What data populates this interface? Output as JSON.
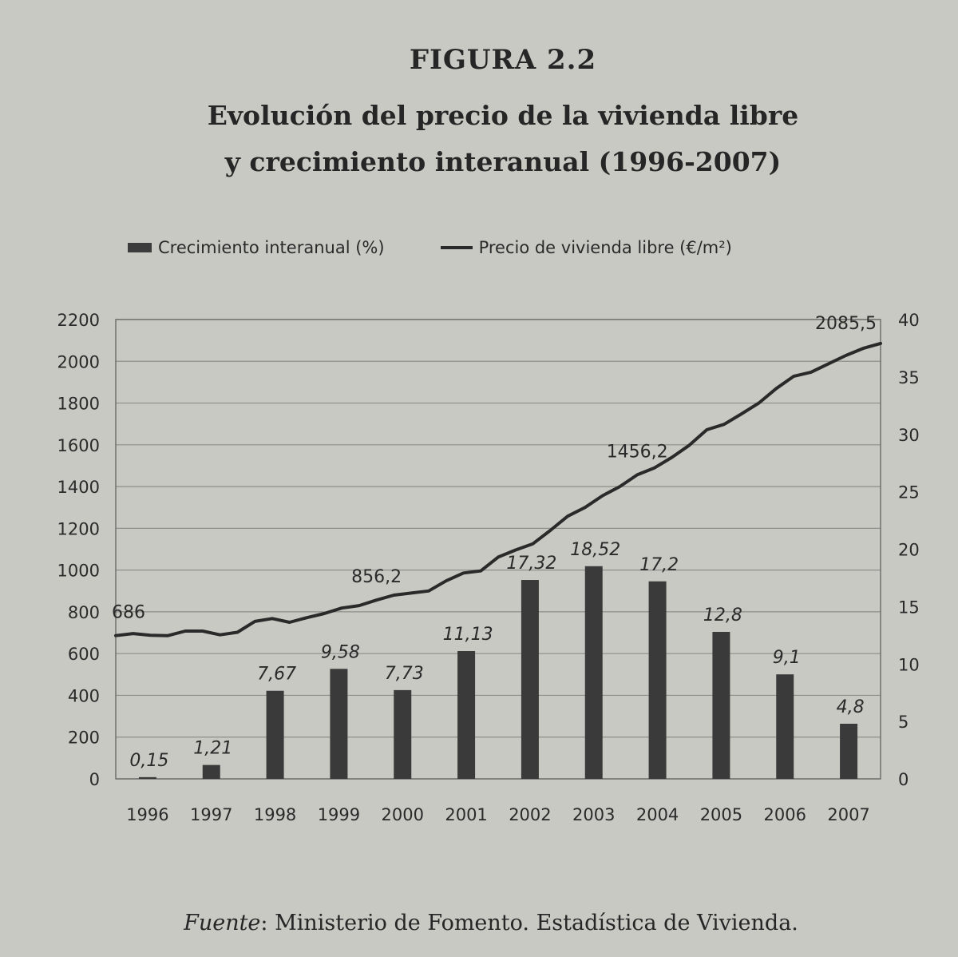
{
  "figure_label": "FIGURA 2.2",
  "title_line1": "Evolución del precio de la vivienda libre",
  "title_line2": "y crecimiento interanual (1996-2007)",
  "source_label": "Fuente",
  "source_text": ": Ministerio de Fomento. Estadística de Vivienda.",
  "chart_data": {
    "type": "bar",
    "categories": [
      "1996",
      "1997",
      "1998",
      "1999",
      "2000",
      "2001",
      "2002",
      "2003",
      "2004",
      "2005",
      "2006",
      "2007"
    ],
    "series": [
      {
        "name": "Crecimiento interanual (%)",
        "type": "bar",
        "axis": "right",
        "values": [
          0.15,
          1.21,
          7.67,
          9.58,
          7.73,
          11.13,
          17.32,
          18.52,
          17.2,
          12.8,
          9.1,
          4.8
        ],
        "labels": [
          "0,15",
          "1,21",
          "7,67",
          "9,58",
          "7,73",
          "11,13",
          "17,32",
          "18,52",
          "17,2",
          "12,8",
          "9,1",
          "4,8"
        ]
      },
      {
        "name": "Precio de vivienda libre (€/m²)",
        "type": "line",
        "axis": "left",
        "x": [
          1996.0,
          1996.25,
          1996.5,
          1996.75,
          1997.0,
          1997.25,
          1997.5,
          1997.75,
          1998.0,
          1998.25,
          1998.5,
          1998.75,
          1999.0,
          1999.25,
          1999.5,
          1999.75,
          2000.0,
          2000.25,
          2000.5,
          2000.75,
          2001.0,
          2001.25,
          2001.5,
          2001.75,
          2002.0,
          2002.25,
          2002.5,
          2002.75,
          2003.0,
          2003.25,
          2003.5,
          2003.75,
          2004.0,
          2004.25,
          2004.5,
          2004.75,
          2005.0,
          2005.25,
          2005.5,
          2005.75,
          2006.0,
          2006.25,
          2006.5,
          2006.75,
          2007.0
        ],
        "y": [
          686,
          696,
          688,
          686,
          708,
          708,
          690,
          702,
          754,
          768,
          750,
          772,
          792,
          818,
          830,
          856.2,
          880,
          890,
          900,
          948,
          986,
          996,
          1062,
          1096,
          1126,
          1190,
          1258,
          1300,
          1356,
          1400,
          1456.2,
          1490,
          1540,
          1598,
          1672,
          1698,
          1748,
          1800,
          1870,
          1928,
          1948,
          1988,
          2028,
          2062,
          2085.5
        ]
      }
    ],
    "point_labels": [
      {
        "x": 1996.0,
        "y": 686,
        "text": "686"
      },
      {
        "x": 1999.75,
        "y": 856.2,
        "text": "856,2"
      },
      {
        "x": 2003.5,
        "y": 1456.2,
        "text": "1456,2"
      },
      {
        "x": 2007.0,
        "y": 2085.5,
        "text": "2085,5"
      }
    ],
    "y_left": {
      "min": 0,
      "max": 2200,
      "ticks": [
        0,
        200,
        400,
        600,
        800,
        1000,
        1200,
        1400,
        1600,
        1800,
        2000,
        2200
      ]
    },
    "y_right": {
      "min": 0,
      "max": 40,
      "ticks": [
        0,
        5,
        10,
        15,
        20,
        25,
        30,
        35,
        40
      ]
    },
    "grid": true,
    "legend_position": "top"
  }
}
